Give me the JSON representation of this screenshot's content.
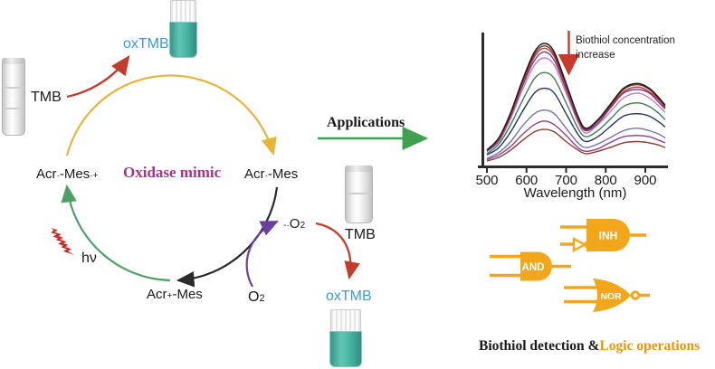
{
  "figure": {
    "cycle": {
      "title": "Oxidase mimic",
      "tmb_label": "TMB",
      "oxtmb_label": "oxTMB",
      "hv_label": "hν",
      "acr_rad_mes_radcat": {
        "pre": "Acr",
        "sup1": "·",
        "mid": "-Mes",
        "sup2": "·+"
      },
      "acr_rad_mes": {
        "pre": "Acr",
        "sup1": "·",
        "mid": "-Mes"
      },
      "acr_cat_mes": {
        "pre": "Acr",
        "sup1": "+",
        "mid": "-Mes"
      },
      "o2": {
        "base": "O",
        "sub": "2"
      },
      "superoxide": {
        "sup": "-·",
        "base": "O",
        "sub": "2"
      },
      "tmb_label_2": "TMB",
      "oxtmb_label_2": "oxTMB"
    },
    "applications_label": "Applications",
    "annotation": {
      "line1": "Biothiol concentration",
      "line2": "increase"
    },
    "gates": {
      "and": "AND",
      "inh": "INH",
      "nor": "NOR"
    },
    "caption": {
      "black": "Biothiol detection &",
      "orange": "Logic operations"
    }
  },
  "chart_data": {
    "type": "line",
    "title": "",
    "xlabel": "Wavelength (nm)",
    "ylabel": "",
    "x_ticks": [
      500,
      600,
      700,
      800,
      900
    ],
    "xlim": [
      500,
      950
    ],
    "grid": false,
    "legend": "none",
    "annotation": "Biothiol concentration increase (absorbance decreases)",
    "peak_wavelengths_nm": [
      645,
      880
    ],
    "x": [
      500,
      530,
      560,
      590,
      620,
      645,
      670,
      700,
      730,
      750,
      780,
      810,
      845,
      880,
      910,
      935,
      950
    ],
    "series": [
      {
        "color": "#1c1c1c",
        "values": [
          0.12,
          0.22,
          0.43,
          0.7,
          0.93,
          1.0,
          0.93,
          0.67,
          0.4,
          0.3,
          0.37,
          0.49,
          0.63,
          0.67,
          0.63,
          0.55,
          0.49
        ]
      },
      {
        "color": "#7a2e23",
        "values": [
          0.12,
          0.22,
          0.42,
          0.69,
          0.91,
          0.98,
          0.91,
          0.66,
          0.39,
          0.29,
          0.36,
          0.48,
          0.62,
          0.66,
          0.62,
          0.54,
          0.48
        ]
      },
      {
        "color": "#c0392b",
        "values": [
          0.12,
          0.21,
          0.41,
          0.67,
          0.89,
          0.96,
          0.89,
          0.64,
          0.38,
          0.29,
          0.36,
          0.47,
          0.6,
          0.64,
          0.6,
          0.53,
          0.47
        ]
      },
      {
        "color": "#6a3d9a",
        "values": [
          0.11,
          0.2,
          0.4,
          0.65,
          0.86,
          0.93,
          0.86,
          0.62,
          0.37,
          0.28,
          0.34,
          0.46,
          0.59,
          0.62,
          0.59,
          0.51,
          0.46
        ]
      },
      {
        "color": "#c77bbe",
        "values": [
          0.11,
          0.19,
          0.38,
          0.62,
          0.82,
          0.88,
          0.82,
          0.59,
          0.35,
          0.26,
          0.33,
          0.43,
          0.55,
          0.59,
          0.55,
          0.48,
          0.43
        ]
      },
      {
        "color": "#3f7d52",
        "values": [
          0.09,
          0.17,
          0.33,
          0.53,
          0.71,
          0.76,
          0.71,
          0.51,
          0.3,
          0.23,
          0.28,
          0.37,
          0.48,
          0.51,
          0.48,
          0.42,
          0.37
        ]
      },
      {
        "color": "#24335f",
        "values": [
          0.08,
          0.14,
          0.27,
          0.44,
          0.59,
          0.63,
          0.59,
          0.42,
          0.25,
          0.19,
          0.23,
          0.31,
          0.4,
          0.42,
          0.4,
          0.35,
          0.31
        ]
      },
      {
        "color": "#7272b4",
        "values": [
          0.05,
          0.1,
          0.19,
          0.32,
          0.42,
          0.45,
          0.42,
          0.3,
          0.18,
          0.14,
          0.17,
          0.22,
          0.28,
          0.3,
          0.28,
          0.25,
          0.22
        ]
      },
      {
        "color": "#8e3f8e",
        "values": [
          0.04,
          0.08,
          0.15,
          0.25,
          0.33,
          0.36,
          0.33,
          0.24,
          0.14,
          0.11,
          0.13,
          0.18,
          0.23,
          0.24,
          0.23,
          0.2,
          0.18
        ]
      },
      {
        "color": "#8f3c31",
        "values": [
          0.03,
          0.06,
          0.12,
          0.2,
          0.27,
          0.29,
          0.27,
          0.19,
          0.12,
          0.09,
          0.11,
          0.14,
          0.18,
          0.19,
          0.18,
          0.16,
          0.14
        ]
      }
    ]
  },
  "colors": {
    "cycle_yellow": "#E7B43C",
    "cycle_black": "#2b2b2b",
    "cycle_green": "#4DA167",
    "arrow_red": "#C23B2B",
    "arrow_purple": "#6B3FA0",
    "applications_green": "#3FA14F",
    "annotation_arrow_red": "#C93A2E",
    "gate_orange": "#F2A71B",
    "caption_orange": "#E8950C",
    "oxtmb_blue": "#3B9CD6",
    "title_magenta": "#A93387",
    "teal_solution": "#49B3A3",
    "lightning_red": "#CF231C"
  }
}
